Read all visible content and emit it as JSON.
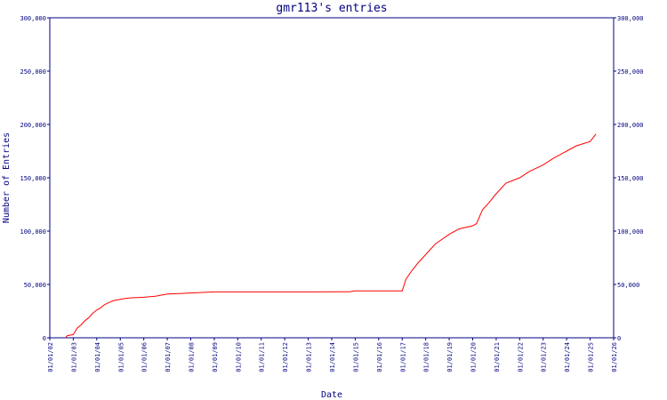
{
  "chart_data": {
    "type": "line",
    "title": "gmr113's entries",
    "xlabel": "Date",
    "ylabel": "Number of Entries",
    "grid": false,
    "legend": "none",
    "axis_color": "#000080",
    "series_color": "#ff0000",
    "ylim": [
      0,
      300000
    ],
    "y_ticks": [
      0,
      50000,
      100000,
      150000,
      200000,
      250000,
      300000
    ],
    "y_tick_labels": [
      "0",
      "50,000",
      "100,000",
      "150,000",
      "200,000",
      "250,000",
      "300,000"
    ],
    "xlim": [
      "01/01/02",
      "01/01/26"
    ],
    "x_tick_labels": [
      "01/01/02",
      "01/01/03",
      "01/01/04",
      "01/01/05",
      "01/01/06",
      "01/01/07",
      "01/01/08",
      "01/01/09",
      "01/01/10",
      "01/01/11",
      "01/01/12",
      "01/01/13",
      "01/01/14",
      "01/01/15",
      "01/01/16",
      "01/01/17",
      "01/01/18",
      "01/01/19",
      "01/01/20",
      "01/01/21",
      "01/01/22",
      "01/01/23",
      "01/01/24",
      "01/01/25",
      "01/01/26"
    ],
    "series": [
      {
        "x": [
          "2002-09-01",
          "2002-10-01",
          "2003-01-01",
          "2003-03-01",
          "2003-05-01",
          "2003-07-01",
          "2003-09-01",
          "2003-11-01",
          "2004-01-01",
          "2004-03-01",
          "2004-05-01",
          "2004-07-01",
          "2004-10-01",
          "2005-01-01",
          "2005-04-01",
          "2005-07-01",
          "2006-01-01",
          "2006-07-01",
          "2007-01-01",
          "2007-07-01",
          "2008-01-01",
          "2008-07-01",
          "2009-01-01",
          "2011-01-01",
          "2013-01-01",
          "2014-10-01",
          "2015-01-01",
          "2016-01-01",
          "2016-06-01",
          "2017-01-01",
          "2017-03-01",
          "2017-06-01",
          "2017-09-01",
          "2018-01-01",
          "2018-06-01",
          "2019-01-01",
          "2019-06-01",
          "2020-01-01",
          "2020-03-01",
          "2020-06-01",
          "2020-09-01",
          "2021-01-01",
          "2021-06-01",
          "2022-01-01",
          "2022-06-01",
          "2023-01-01",
          "2023-06-01",
          "2024-01-01",
          "2024-06-01",
          "2025-01-01",
          "2025-04-01"
        ],
        "y": [
          0,
          2000,
          3000,
          9000,
          12000,
          16000,
          19000,
          23000,
          26000,
          28000,
          31000,
          33000,
          35000,
          36000,
          37000,
          37500,
          38000,
          39000,
          41000,
          41500,
          42000,
          42500,
          43000,
          43000,
          43000,
          43200,
          44000,
          44000,
          44000,
          44000,
          55000,
          63000,
          70000,
          78000,
          88000,
          97000,
          102000,
          105000,
          107000,
          120000,
          126000,
          135000,
          145000,
          150000,
          156000,
          162000,
          168000,
          175000,
          180000,
          184000,
          191000
        ]
      }
    ]
  }
}
